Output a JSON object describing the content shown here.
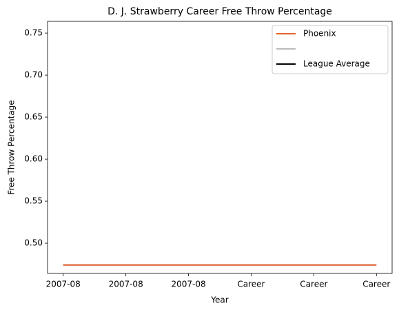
{
  "chart_data": {
    "type": "line",
    "title": "D. J. Strawberry Career Free Throw Percentage",
    "xlabel": "Year",
    "ylabel": "Free Throw Percentage",
    "categories": [
      "2007-08",
      "2007-08",
      "2007-08",
      "Career",
      "Career",
      "Career"
    ],
    "series": [
      {
        "name": "Phoenix",
        "color": "#e2612b",
        "values": [
          0.474,
          0.474,
          0.474,
          0.474,
          0.474,
          0.474
        ]
      },
      {
        "name": null,
        "color": "#bbbbbb",
        "values": [
          0.474,
          0.474,
          0.474,
          0.474,
          0.474,
          0.474
        ]
      },
      {
        "name": "League Average",
        "color": "#000000",
        "values": [
          null,
          null,
          null,
          null,
          null,
          null
        ]
      }
    ],
    "ylim": [
      0.464,
      0.764
    ],
    "yticks": [
      {
        "value": 0.5,
        "label": "0.50"
      },
      0.55,
      {
        "value": 0.6,
        "label": "0.60"
      },
      0.65,
      {
        "value": 0.7,
        "label": "0.70"
      },
      0.75
    ],
    "legend": "upper right",
    "grid": false
  }
}
